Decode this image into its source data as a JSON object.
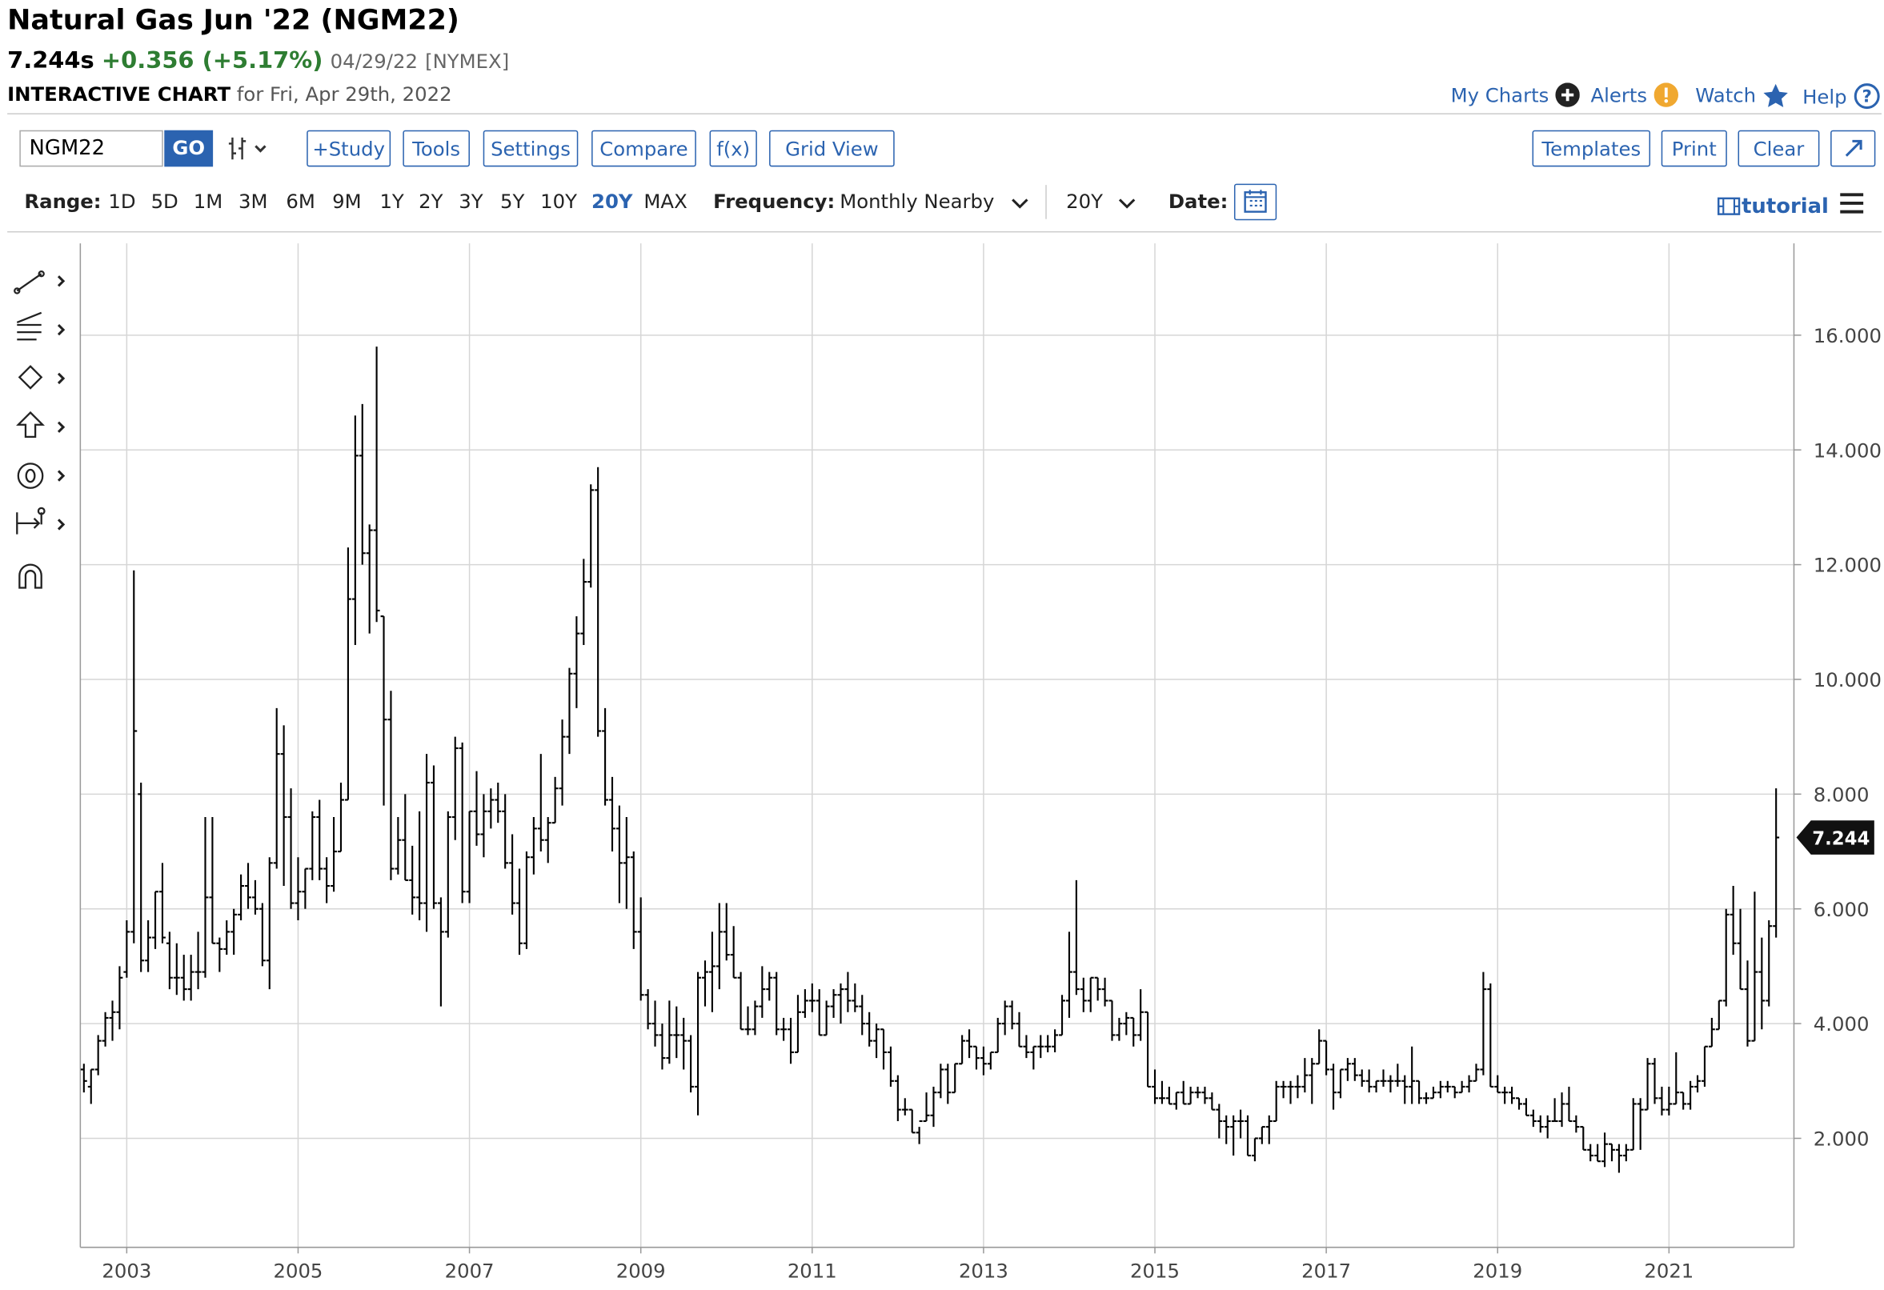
{
  "header": {
    "title": "Natural Gas Jun '22 (NGM22)",
    "last_price": "7.244s",
    "change": "+0.356 (+5.17%)",
    "date": "04/29/22",
    "exchange": "[NYMEX]",
    "chart_label": "INTERACTIVE CHART",
    "chart_date": "for Fri, Apr 29th, 2022"
  },
  "links": [
    "My Charts",
    "Alerts",
    "Watch",
    "Help"
  ],
  "toolbar": {
    "symbol": "NGM22",
    "go": "GO",
    "buttons": [
      "+Study",
      "Tools",
      "Settings",
      "Compare",
      "f(x)",
      "Grid View"
    ],
    "right_buttons": [
      "Templates",
      "Print",
      "Clear"
    ]
  },
  "range": {
    "label": "Range:",
    "options": [
      "1D",
      "5D",
      "1M",
      "3M",
      "6M",
      "9M",
      "1Y",
      "2Y",
      "3Y",
      "5Y",
      "10Y",
      "20Y",
      "MAX"
    ]
  },
  "frequency": {
    "label": "Frequency:",
    "value": "Monthly Nearby"
  },
  "period": "20Y",
  "date_label": "Date:",
  "tutorial": "tutorial",
  "chart_data": {
    "type": "ohlc",
    "color": "#000000",
    "grid": true,
    "ylim": [
      0.1,
      17.6
    ],
    "yticks": [
      {
        "value": 2,
        "label": "2.000"
      },
      {
        "value": 4,
        "label": "4.000"
      },
      {
        "value": 6,
        "label": "6.000"
      },
      {
        "value": 8,
        "label": "8.000"
      },
      {
        "value": 10,
        "label": "10.000"
      },
      {
        "value": 12,
        "label": "12.000"
      },
      {
        "value": 14,
        "label": "14.000"
      },
      {
        "value": 16,
        "label": "16.000"
      }
    ],
    "categories": [
      null,
      null,
      null,
      null,
      null,
      null,
      "2003",
      null,
      null,
      null,
      null,
      null,
      null,
      null,
      null,
      null,
      null,
      null,
      null,
      null,
      null,
      null,
      null,
      null,
      null,
      null,
      null,
      null,
      null,
      null,
      "2005",
      null,
      null,
      null,
      null,
      null,
      null,
      null,
      null,
      null,
      null,
      null,
      null,
      null,
      null,
      null,
      null,
      null,
      null,
      null,
      null,
      null,
      null,
      null,
      "2007",
      null,
      null,
      null,
      null,
      null,
      null,
      null,
      null,
      null,
      null,
      null,
      null,
      null,
      null,
      null,
      null,
      null,
      null,
      null,
      null,
      null,
      null,
      null,
      "2009",
      null,
      null,
      null,
      null,
      null,
      null,
      null,
      null,
      null,
      null,
      null,
      null,
      null,
      null,
      null,
      null,
      null,
      null,
      null,
      null,
      null,
      null,
      null,
      "2011",
      null,
      null,
      null,
      null,
      null,
      null,
      null,
      null,
      null,
      null,
      null,
      null,
      null,
      null,
      null,
      null,
      null,
      null,
      null,
      null,
      null,
      null,
      null,
      "2013",
      null,
      null,
      null,
      null,
      null,
      null,
      null,
      null,
      null,
      null,
      null,
      null,
      null,
      null,
      null,
      null,
      null,
      null,
      null,
      null,
      null,
      null,
      null,
      "2015",
      null,
      null,
      null,
      null,
      null,
      null,
      null,
      null,
      null,
      null,
      null,
      null,
      null,
      null,
      null,
      null,
      null,
      null,
      null,
      null,
      null,
      null,
      null,
      "2017",
      null,
      null,
      null,
      null,
      null,
      null,
      null,
      null,
      null,
      null,
      null,
      null,
      null,
      null,
      null,
      null,
      null,
      null,
      null,
      null,
      null,
      null,
      null,
      "2019",
      null,
      null,
      null,
      null,
      null,
      null,
      null,
      null,
      null,
      null,
      null,
      null,
      null,
      null,
      null,
      null,
      null,
      null,
      null,
      null,
      null,
      null,
      null,
      "2021",
      null,
      null,
      null,
      null,
      null,
      null,
      null,
      null,
      null,
      null,
      null,
      null,
      null,
      null,
      null
    ],
    "open": [
      3.2,
      2.9,
      3.2,
      3.7,
      4.1,
      4.2,
      4.9,
      5.6,
      8.0,
      5.1,
      5.5,
      6.3,
      5.4,
      4.8,
      4.8,
      4.6,
      4.9,
      4.9,
      6.2,
      5.4,
      5.3,
      5.6,
      5.9,
      6.4,
      6.2,
      6.0,
      5.1,
      6.8,
      8.7,
      7.6,
      6.1,
      6.3,
      6.7,
      7.6,
      6.7,
      6.4,
      7.0,
      7.9,
      11.4,
      13.9,
      12.2,
      12.6,
      11.1,
      9.3,
      6.7,
      7.2,
      6.5,
      6.2,
      6.1,
      8.2,
      6.1,
      5.6,
      7.6,
      8.8,
      6.3,
      7.7,
      7.3,
      7.7,
      7.9,
      7.7,
      6.8,
      6.1,
      5.4,
      6.9,
      7.4,
      7.2,
      7.5,
      8.1,
      9.0,
      10.1,
      10.8,
      11.7,
      13.3,
      9.1,
      7.9,
      7.4,
      6.8,
      6.9,
      5.6,
      4.5,
      4.0,
      3.8,
      3.4,
      3.8,
      3.8,
      3.7,
      2.9,
      4.8,
      4.9,
      5.0,
      5.6,
      5.2,
      4.8,
      3.9,
      3.9,
      4.3,
      4.6,
      4.8,
      3.9,
      3.9,
      3.5,
      4.2,
      4.4,
      4.4,
      3.8,
      4.3,
      4.5,
      4.6,
      4.4,
      4.3,
      4.0,
      3.7,
      3.9,
      3.5,
      3.0,
      2.5,
      2.5,
      2.1,
      2.3,
      2.4,
      2.8,
      3.2,
      2.8,
      3.3,
      3.7,
      3.6,
      3.4,
      3.3,
      3.5,
      4.0,
      4.3,
      4.0,
      3.6,
      3.5,
      3.6,
      3.6,
      3.6,
      3.8,
      4.4,
      4.9,
      4.6,
      4.4,
      4.8,
      4.6,
      4.4,
      3.8,
      4.0,
      4.1,
      3.8,
      4.2,
      2.9,
      2.7,
      2.7,
      2.6,
      2.8,
      2.6,
      2.8,
      2.8,
      2.7,
      2.5,
      2.3,
      2.2,
      2.3,
      2.3,
      1.7,
      2.0,
      2.2,
      2.3,
      2.9,
      2.9,
      2.9,
      2.9,
      3.1,
      3.3,
      3.7,
      3.2,
      2.8,
      3.2,
      3.3,
      3.1,
      3.0,
      2.9,
      3.0,
      3.0,
      3.0,
      3.0,
      2.9,
      3.0,
      2.7,
      2.7,
      2.8,
      2.9,
      2.9,
      2.8,
      2.9,
      3.0,
      3.2,
      4.6,
      2.9,
      2.8,
      2.8,
      2.7,
      2.6,
      2.4,
      2.3,
      2.2,
      2.3,
      2.3,
      2.6,
      2.3,
      2.2,
      1.8,
      1.7,
      1.6,
      1.9,
      1.8,
      1.7,
      1.8,
      2.6,
      2.5,
      3.3,
      2.7,
      2.5,
      2.6,
      2.8,
      2.6,
      2.9,
      3.0,
      3.6,
      3.9,
      4.4,
      5.9,
      5.4,
      4.6,
      3.7,
      4.9,
      4.4,
      5.7
    ],
    "high": [
      3.3,
      3.2,
      3.8,
      4.2,
      4.4,
      5.0,
      5.8,
      11.9,
      8.2,
      5.8,
      6.3,
      6.8,
      5.6,
      5.4,
      5.2,
      5.2,
      5.6,
      7.6,
      7.6,
      5.5,
      5.8,
      6.0,
      6.6,
      6.8,
      6.5,
      6.1,
      6.9,
      9.5,
      9.2,
      8.1,
      6.9,
      6.7,
      7.7,
      7.9,
      6.9,
      7.6,
      8.2,
      12.3,
      14.6,
      14.8,
      12.7,
      15.8,
      11.1,
      9.8,
      7.6,
      8.0,
      7.1,
      7.7,
      8.7,
      8.5,
      6.2,
      7.7,
      9.0,
      8.9,
      7.7,
      8.4,
      8.0,
      8.1,
      8.2,
      8.0,
      7.3,
      6.7,
      7.0,
      7.6,
      8.7,
      7.6,
      8.3,
      9.3,
      10.2,
      11.1,
      12.1,
      13.4,
      13.7,
      9.5,
      8.3,
      7.8,
      7.6,
      7.0,
      6.2,
      4.6,
      4.4,
      4.0,
      4.4,
      4.3,
      4.1,
      3.8,
      4.9,
      5.1,
      5.6,
      6.1,
      6.1,
      5.7,
      4.9,
      4.3,
      4.4,
      5.0,
      4.9,
      4.9,
      4.1,
      4.1,
      4.5,
      4.6,
      4.7,
      4.6,
      4.4,
      4.6,
      4.7,
      4.9,
      4.7,
      4.5,
      4.2,
      4.0,
      3.9,
      3.6,
      3.1,
      2.7,
      2.5,
      2.2,
      2.8,
      2.9,
      3.3,
      3.3,
      3.3,
      3.8,
      3.9,
      3.6,
      3.6,
      3.5,
      4.1,
      4.4,
      4.4,
      4.2,
      3.8,
      3.6,
      3.8,
      3.8,
      3.9,
      4.5,
      5.6,
      6.5,
      4.8,
      4.8,
      4.8,
      4.8,
      4.4,
      4.1,
      4.2,
      4.1,
      4.6,
      4.2,
      3.2,
      3.0,
      2.9,
      2.8,
      3.0,
      2.9,
      2.9,
      2.9,
      2.8,
      2.6,
      2.4,
      2.4,
      2.5,
      2.4,
      2.0,
      2.2,
      2.4,
      3.0,
      3.0,
      3.0,
      3.1,
      3.4,
      3.4,
      3.9,
      3.7,
      3.3,
      3.2,
      3.4,
      3.4,
      3.2,
      3.2,
      3.0,
      3.2,
      3.1,
      3.3,
      3.1,
      3.6,
      3.0,
      2.8,
      2.9,
      3.0,
      3.0,
      2.9,
      3.0,
      3.1,
      3.3,
      4.9,
      4.7,
      3.1,
      2.9,
      2.9,
      2.7,
      2.7,
      2.5,
      2.4,
      2.4,
      2.7,
      2.8,
      2.9,
      2.4,
      2.2,
      1.9,
      1.9,
      2.1,
      1.9,
      1.9,
      1.9,
      2.7,
      2.7,
      3.4,
      3.4,
      2.9,
      2.9,
      3.5,
      2.8,
      3.0,
      3.1,
      3.6,
      4.1,
      4.4,
      6.0,
      6.4,
      6.0,
      5.1,
      6.3,
      5.5,
      5.8,
      8.1
    ],
    "low": [
      2.8,
      2.6,
      3.1,
      3.6,
      3.7,
      3.9,
      4.8,
      5.4,
      4.9,
      4.9,
      5.3,
      5.4,
      4.6,
      4.5,
      4.4,
      4.4,
      4.6,
      4.8,
      5.4,
      4.9,
      5.2,
      5.2,
      5.8,
      6.0,
      5.9,
      5.0,
      4.6,
      6.7,
      6.4,
      6.0,
      5.8,
      6.0,
      6.5,
      6.5,
      6.1,
      6.3,
      7.0,
      7.9,
      10.6,
      12.0,
      10.8,
      11.0,
      7.8,
      6.5,
      6.6,
      6.5,
      5.9,
      5.8,
      5.6,
      6.0,
      4.3,
      5.5,
      7.2,
      6.1,
      6.1,
      7.1,
      6.9,
      7.4,
      7.5,
      6.7,
      5.9,
      5.2,
      5.3,
      6.6,
      7.0,
      6.8,
      7.5,
      7.8,
      8.7,
      9.5,
      10.6,
      11.6,
      9.0,
      7.8,
      7.0,
      6.1,
      6.0,
      5.3,
      4.4,
      3.9,
      3.6,
      3.2,
      3.3,
      3.4,
      3.2,
      2.8,
      2.4,
      4.3,
      4.2,
      4.6,
      5.1,
      4.8,
      3.9,
      3.8,
      3.8,
      4.1,
      4.4,
      3.8,
      3.7,
      3.3,
      3.5,
      4.1,
      4.2,
      3.8,
      3.8,
      4.1,
      4.0,
      4.2,
      4.2,
      3.8,
      3.6,
      3.4,
      3.2,
      2.9,
      2.3,
      2.4,
      2.1,
      1.9,
      2.3,
      2.2,
      2.7,
      2.6,
      2.8,
      3.3,
      3.4,
      3.2,
      3.1,
      3.2,
      3.5,
      3.8,
      3.9,
      3.6,
      3.4,
      3.2,
      3.4,
      3.5,
      3.5,
      3.8,
      4.1,
      4.5,
      4.2,
      4.2,
      4.4,
      4.3,
      3.7,
      3.7,
      3.8,
      3.6,
      3.7,
      2.9,
      2.6,
      2.6,
      2.6,
      2.5,
      2.6,
      2.6,
      2.7,
      2.6,
      2.5,
      2.0,
      1.9,
      1.7,
      2.0,
      1.7,
      1.6,
      1.9,
      1.9,
      2.3,
      2.7,
      2.6,
      2.7,
      2.8,
      2.6,
      3.3,
      3.1,
      2.5,
      2.7,
      3.0,
      3.0,
      2.9,
      2.8,
      2.8,
      2.9,
      2.8,
      2.9,
      2.6,
      2.6,
      2.6,
      2.6,
      2.7,
      2.7,
      2.8,
      2.7,
      2.8,
      2.8,
      3.0,
      3.1,
      2.9,
      2.8,
      2.6,
      2.6,
      2.5,
      2.4,
      2.2,
      2.1,
      2.0,
      2.3,
      2.2,
      2.3,
      2.1,
      1.8,
      1.6,
      1.6,
      1.5,
      1.6,
      1.4,
      1.6,
      1.8,
      1.8,
      2.5,
      2.6,
      2.4,
      2.4,
      2.6,
      2.5,
      2.5,
      2.8,
      2.9,
      3.6,
      3.9,
      4.3,
      5.2,
      4.6,
      3.6,
      3.7,
      3.9,
      4.3,
      5.5
    ],
    "close": [
      3.0,
      3.2,
      3.7,
      4.1,
      4.2,
      4.8,
      5.6,
      9.1,
      5.1,
      5.5,
      6.3,
      5.5,
      4.8,
      4.8,
      4.6,
      4.9,
      4.9,
      6.2,
      5.4,
      5.3,
      5.6,
      5.9,
      6.4,
      6.2,
      6.0,
      5.1,
      6.8,
      8.7,
      7.6,
      6.1,
      6.3,
      6.7,
      7.6,
      6.7,
      6.4,
      7.0,
      7.9,
      11.4,
      13.9,
      12.2,
      12.6,
      11.2,
      9.3,
      6.7,
      7.2,
      6.5,
      6.2,
      6.1,
      8.2,
      6.1,
      5.6,
      7.6,
      8.8,
      6.3,
      7.7,
      7.3,
      7.7,
      7.9,
      7.7,
      6.8,
      6.1,
      5.4,
      6.9,
      7.4,
      7.2,
      7.5,
      8.1,
      9.0,
      10.1,
      10.8,
      11.7,
      13.3,
      9.1,
      7.9,
      7.4,
      6.8,
      6.9,
      5.6,
      4.5,
      4.0,
      3.8,
      3.4,
      3.8,
      3.8,
      3.7,
      2.9,
      4.8,
      4.9,
      5.0,
      5.6,
      5.2,
      4.8,
      3.9,
      3.9,
      4.3,
      4.6,
      4.8,
      3.9,
      3.9,
      3.5,
      4.2,
      4.4,
      4.4,
      3.8,
      4.3,
      4.5,
      4.6,
      4.4,
      4.3,
      4.0,
      3.7,
      3.9,
      3.5,
      3.0,
      2.5,
      2.5,
      2.1,
      2.3,
      2.4,
      2.8,
      3.2,
      2.8,
      3.3,
      3.7,
      3.6,
      3.4,
      3.3,
      3.5,
      4.0,
      4.3,
      4.0,
      3.6,
      3.5,
      3.6,
      3.6,
      3.6,
      3.8,
      4.4,
      4.9,
      4.6,
      4.4,
      4.8,
      4.6,
      4.4,
      3.8,
      4.0,
      4.1,
      3.8,
      4.2,
      2.9,
      2.7,
      2.7,
      2.6,
      2.8,
      2.6,
      2.8,
      2.8,
      2.7,
      2.5,
      2.3,
      2.2,
      2.3,
      2.3,
      1.7,
      2.0,
      2.2,
      2.3,
      2.9,
      2.9,
      2.9,
      2.9,
      3.1,
      3.3,
      3.7,
      3.2,
      2.8,
      3.2,
      3.3,
      3.1,
      3.0,
      2.9,
      3.0,
      3.0,
      3.0,
      3.0,
      2.9,
      3.0,
      2.7,
      2.7,
      2.8,
      2.9,
      2.9,
      2.8,
      2.9,
      3.0,
      3.2,
      4.6,
      2.9,
      2.8,
      2.8,
      2.7,
      2.6,
      2.4,
      2.3,
      2.2,
      2.3,
      2.3,
      2.6,
      2.3,
      2.2,
      1.8,
      1.7,
      1.6,
      1.9,
      1.8,
      1.7,
      1.8,
      2.6,
      2.5,
      3.3,
      2.7,
      2.5,
      2.6,
      2.8,
      2.6,
      2.9,
      3.0,
      3.6,
      3.9,
      4.4,
      5.9,
      5.4,
      4.6,
      3.7,
      4.9,
      4.4,
      5.7,
      7.244
    ]
  }
}
